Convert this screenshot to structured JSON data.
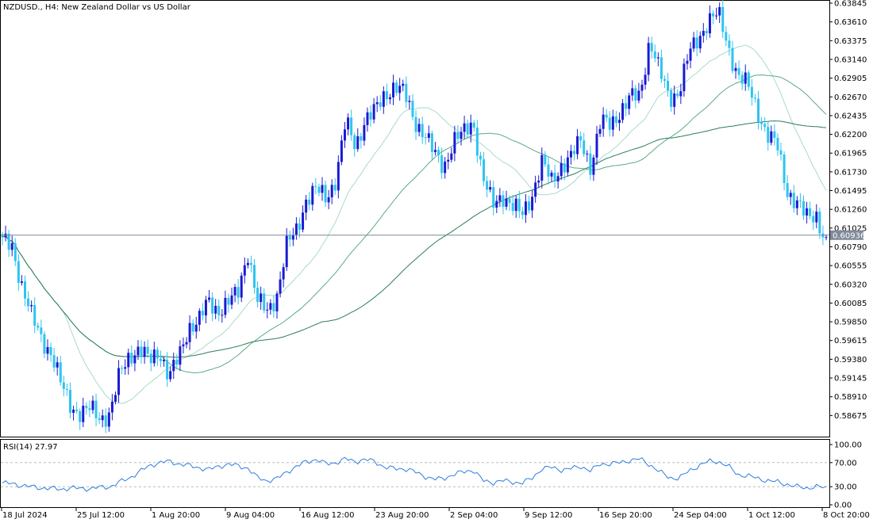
{
  "header": {
    "title": "NZDUSD., H4:  New Zealand Dollar vs US Dollar"
  },
  "colors": {
    "bull": "#1a1ad4",
    "bear": "#2ec4f0",
    "ma_fast": "#a8dcc6",
    "ma_mid": "#5aab82",
    "ma_slow": "#2e7d5b",
    "rsi": "#2f7ee0",
    "current_label_bg": "#7f8a99",
    "axis": "#000000",
    "grid": "#bcbcbc"
  },
  "rsi": {
    "title": "RSI(14) 27.97",
    "levels": [
      "100.00",
      "70.00",
      "30.00",
      "0.00"
    ]
  },
  "chart_data": {
    "type": "candlestick",
    "symbol": "NZDUSD.",
    "timeframe": "H4",
    "ylim": [
      0.5844,
      0.63845
    ],
    "price_ticks": [
      "0.63845",
      "0.63610",
      "0.63375",
      "0.63140",
      "0.62905",
      "0.62670",
      "0.62435",
      "0.62200",
      "0.61965",
      "0.61730",
      "0.61495",
      "0.61260",
      "0.61025",
      "0.60790",
      "0.60555",
      "0.60320",
      "0.60085",
      "0.59850",
      "0.59615",
      "0.59380",
      "0.59145",
      "0.58910",
      "0.58675"
    ],
    "current_price": "0.60936",
    "time_ticks": [
      "18 Jul 2024",
      "25 Jul 12:00",
      "1 Aug 20:00",
      "9 Aug 04:00",
      "16 Aug 12:00",
      "23 Aug 20:00",
      "2 Sep 04:00",
      "9 Sep 12:00",
      "16 Sep 20:00",
      "24 Sep 04:00",
      "1 Oct 12:00",
      "8 Oct 20:00"
    ],
    "price_path": [
      0.6085,
      0.608,
      0.603,
      0.599,
      0.5965,
      0.5945,
      0.5905,
      0.588,
      0.587,
      0.5875,
      0.5865,
      0.587,
      0.592,
      0.5945,
      0.595,
      0.5935,
      0.595,
      0.5915,
      0.594,
      0.598,
      0.5985,
      0.601,
      0.6,
      0.6008,
      0.602,
      0.6075,
      0.601,
      0.5998,
      0.602,
      0.608,
      0.61,
      0.614,
      0.615,
      0.614,
      0.6165,
      0.6235,
      0.6205,
      0.624,
      0.6248,
      0.627,
      0.6282,
      0.627,
      0.6238,
      0.6222,
      0.6195,
      0.618,
      0.6212,
      0.622,
      0.6238,
      0.6165,
      0.613,
      0.6145,
      0.613,
      0.6118,
      0.6145,
      0.6185,
      0.616,
      0.6182,
      0.6192,
      0.6212,
      0.618,
      0.6235,
      0.6232,
      0.625,
      0.6265,
      0.6268,
      0.634,
      0.6298,
      0.6265,
      0.6275,
      0.632,
      0.634,
      0.6365,
      0.637,
      0.633,
      0.6295,
      0.628,
      0.625,
      0.622,
      0.6205,
      0.615,
      0.6135,
      0.6115,
      0.612,
      0.6083
    ],
    "rsi_path": [
      36,
      35,
      32,
      30,
      28,
      27,
      26,
      28,
      27,
      27,
      29,
      30,
      38,
      45,
      55,
      65,
      70,
      72,
      68,
      65,
      62,
      58,
      64,
      67,
      65,
      61,
      45,
      40,
      43,
      55,
      63,
      72,
      75,
      68,
      70,
      76,
      72,
      75,
      72,
      62,
      60,
      60,
      55,
      48,
      42,
      44,
      50,
      55,
      58,
      40,
      37,
      40,
      38,
      36,
      44,
      60,
      62,
      58,
      60,
      64,
      56,
      68,
      68,
      70,
      74,
      76,
      67,
      55,
      45,
      44,
      56,
      65,
      72,
      72,
      64,
      50,
      48,
      44,
      40,
      38,
      34,
      30,
      28,
      30,
      27.97
    ]
  }
}
